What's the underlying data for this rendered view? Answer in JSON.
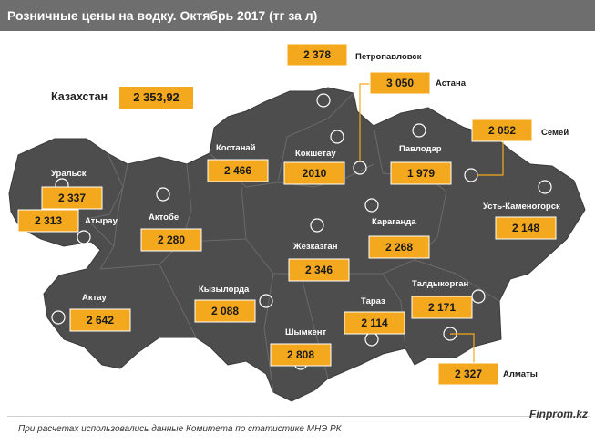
{
  "title": "Розничные цены на водку. Октябрь 2017 (тг за л)",
  "country": {
    "label": "Казахстан",
    "value": "2 353,92"
  },
  "footnote": "При расчетах использовались данные Комитета по статистике МНЭ РК",
  "brand": "Finprom.kz",
  "colors": {
    "map": "#4d4d4d",
    "box": "#f4a81d",
    "title_bar": "#6e6e6e",
    "leader": "#f4a81d"
  },
  "chart_data": {
    "type": "table",
    "title": "Розничные цены на водку. Октябрь 2017 (тг за л)",
    "units": "тг за л",
    "regions": [
      {
        "name": "Петропавловск",
        "value": 2378,
        "value_text": "2 378"
      },
      {
        "name": "Астана",
        "value": 3050,
        "value_text": "3 050"
      },
      {
        "name": "Семей",
        "value": 2052,
        "value_text": "2 052"
      },
      {
        "name": "Костанай",
        "value": 2466,
        "value_text": "2 466"
      },
      {
        "name": "Кокшетау",
        "value": 2010,
        "value_text": "2010"
      },
      {
        "name": "Павлодар",
        "value": 1979,
        "value_text": "1 979"
      },
      {
        "name": "Уральск",
        "value": 2337,
        "value_text": "2 337"
      },
      {
        "name": "Атырау",
        "value": 2313,
        "value_text": "2 313"
      },
      {
        "name": "Актобе",
        "value": 2280,
        "value_text": "2 280"
      },
      {
        "name": "Караганда",
        "value": 2268,
        "value_text": "2 268"
      },
      {
        "name": "Усть-Каменогорск",
        "value": 2148,
        "value_text": "2 148"
      },
      {
        "name": "Жезказган",
        "value": 2346,
        "value_text": "2 346"
      },
      {
        "name": "Талдыкорган",
        "value": 2171,
        "value_text": "2 171"
      },
      {
        "name": "Кызылорда",
        "value": 2088,
        "value_text": "2 088"
      },
      {
        "name": "Тараз",
        "value": 2114,
        "value_text": "2 114"
      },
      {
        "name": "Актау",
        "value": 2642,
        "value_text": "2 642"
      },
      {
        "name": "Шымкент",
        "value": 2808,
        "value_text": "2 808"
      },
      {
        "name": "Алматы",
        "value": 2327,
        "value_text": "2 327"
      }
    ]
  }
}
